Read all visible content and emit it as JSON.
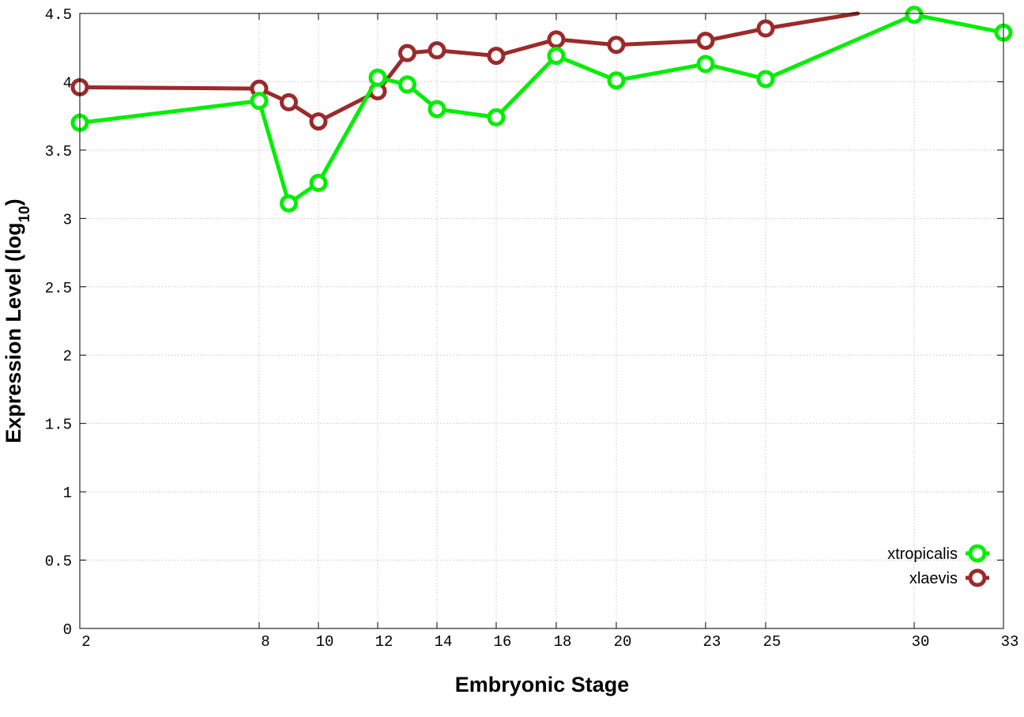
{
  "chart_data": {
    "type": "line",
    "title": "",
    "xlabel": "Embryonic Stage",
    "ylabel": {
      "main": "Expression Level (log",
      "subscript": "10",
      "suffix": ")"
    },
    "x_ticks": [
      2,
      8,
      10,
      12,
      14,
      16,
      18,
      20,
      23,
      25,
      30,
      33
    ],
    "y_ticks": [
      "0",
      "0.5",
      "1",
      "1.5",
      "2",
      "2.5",
      "3",
      "3.5",
      "4",
      "4.5"
    ],
    "xlim": [
      2,
      33
    ],
    "ylim": [
      0,
      4.5
    ],
    "grid": true,
    "legend_position": "bottom-right",
    "series": [
      {
        "name": "xtropicalis",
        "color": "#00ee00",
        "points": [
          {
            "x": 2,
            "y": 3.7
          },
          {
            "x": 8,
            "y": 3.86
          },
          {
            "x": 9,
            "y": 3.11
          },
          {
            "x": 10,
            "y": 3.26
          },
          {
            "x": 12,
            "y": 4.03
          },
          {
            "x": 13,
            "y": 3.98
          },
          {
            "x": 14,
            "y": 3.8
          },
          {
            "x": 16,
            "y": 3.74
          },
          {
            "x": 18,
            "y": 4.19
          },
          {
            "x": 20,
            "y": 4.01
          },
          {
            "x": 23,
            "y": 4.13
          },
          {
            "x": 25,
            "y": 4.02
          },
          {
            "x": 30,
            "y": 4.49
          },
          {
            "x": 33,
            "y": 4.36
          }
        ]
      },
      {
        "name": "xlaevis",
        "color": "#9b2a2a",
        "points": [
          {
            "x": 2,
            "y": 3.96
          },
          {
            "x": 8,
            "y": 3.95
          },
          {
            "x": 9,
            "y": 3.85
          },
          {
            "x": 10,
            "y": 3.71
          },
          {
            "x": 12,
            "y": 3.93
          },
          {
            "x": 13,
            "y": 4.21
          },
          {
            "x": 14,
            "y": 4.23
          },
          {
            "x": 16,
            "y": 4.19
          },
          {
            "x": 18,
            "y": 4.31
          },
          {
            "x": 20,
            "y": 4.27
          },
          {
            "x": 23,
            "y": 4.3
          },
          {
            "x": 25,
            "y": 4.39
          },
          {
            "x": 28.1,
            "y": 4.5,
            "clipped": true
          }
        ]
      }
    ]
  }
}
